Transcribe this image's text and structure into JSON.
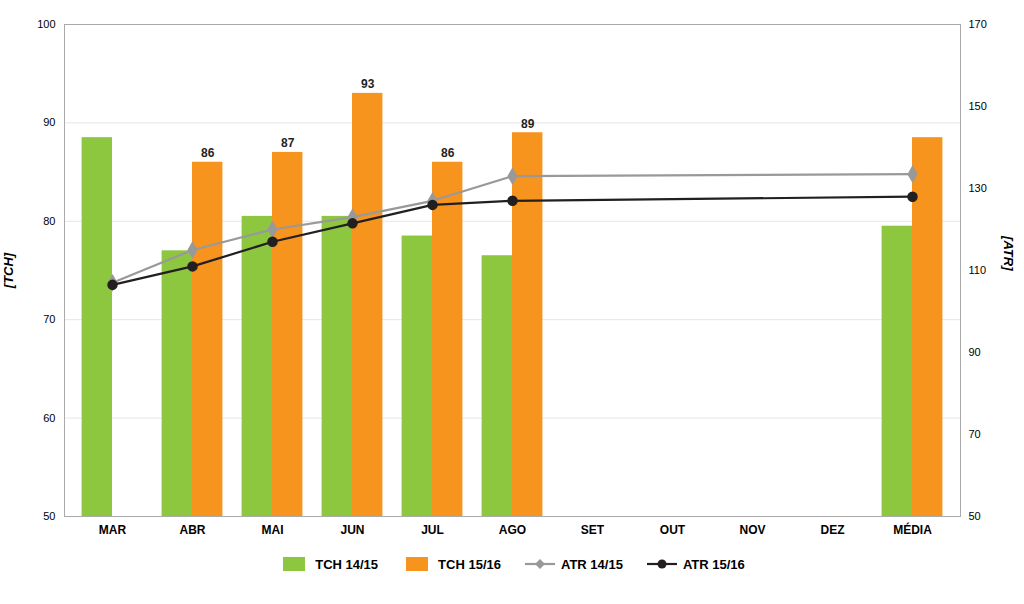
{
  "chart_data": {
    "type": "bar",
    "categories": [
      "MAR",
      "ABR",
      "MAI",
      "JUN",
      "JUL",
      "AGO",
      "SET",
      "OUT",
      "NOV",
      "DEZ",
      "MÉDIA"
    ],
    "ylabel": "[TCH]",
    "y2label": "[ATR]",
    "ylim": [
      50,
      100
    ],
    "yticks": [
      50,
      60,
      70,
      80,
      90,
      100
    ],
    "y2lim": [
      50,
      170
    ],
    "y2ticks": [
      50,
      70,
      90,
      110,
      130,
      150,
      170
    ],
    "grid": true,
    "legend": "bottom",
    "series": [
      {
        "name": "TCH 14/15",
        "type": "bar",
        "color": "#8DC63F",
        "values": [
          88.5,
          77.0,
          80.5,
          80.5,
          78.5,
          76.5,
          null,
          null,
          null,
          null,
          79.5
        ]
      },
      {
        "name": "TCH 15/16",
        "type": "bar",
        "color": "#F7941D",
        "values": [
          null,
          86.0,
          87.0,
          93.0,
          86.0,
          89.0,
          null,
          null,
          null,
          null,
          88.5
        ],
        "data_labels": true,
        "value_labels": [
          null,
          "86",
          "87",
          "93",
          "86",
          "89",
          null,
          null,
          null,
          null,
          null
        ]
      },
      {
        "name": "ATR 14/15",
        "type": "line",
        "axis": "y2",
        "color": "#999999",
        "marker": "diamond",
        "x": [
          "MAR",
          "ABR",
          "MAI",
          "JUN",
          "JUL",
          "AGO",
          "MÉDIA"
        ],
        "values": [
          107.0,
          115.0,
          120.0,
          123.0,
          127.0,
          133.0,
          133.5
        ]
      },
      {
        "name": "ATR 15/16",
        "type": "line",
        "axis": "y2",
        "color": "#231F20",
        "marker": "circle",
        "x": [
          "MAR",
          "ABR",
          "MAI",
          "JUN",
          "JUL",
          "AGO",
          "MÉDIA"
        ],
        "values": [
          106.5,
          111.0,
          117.0,
          121.5,
          126.0,
          127.0,
          128.0
        ]
      }
    ]
  }
}
